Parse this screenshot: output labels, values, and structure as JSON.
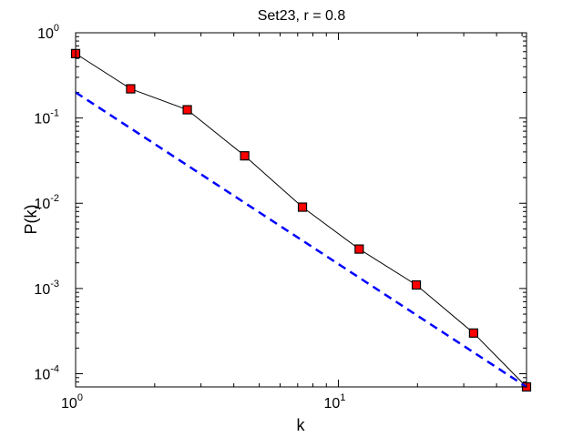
{
  "chart_data": {
    "type": "line",
    "title": "Set23, r = 0.8",
    "xlabel": "k",
    "ylabel": "P(k)",
    "xscale": "log",
    "yscale": "log",
    "xlim": [
      1,
      52
    ],
    "ylim": [
      7e-05,
      1
    ],
    "grid": false,
    "legend": "none",
    "x_ticks": [
      {
        "value": 1,
        "base": "10",
        "exp": "0"
      },
      {
        "value": 10,
        "base": "10",
        "exp": "1"
      }
    ],
    "y_ticks": [
      {
        "value": 1,
        "base": "10",
        "exp": "0"
      },
      {
        "value": 0.1,
        "base": "10",
        "exp": "-1"
      },
      {
        "value": 0.01,
        "base": "10",
        "exp": "-2"
      },
      {
        "value": 0.001,
        "base": "10",
        "exp": "-3"
      },
      {
        "value": 0.0001,
        "base": "10",
        "exp": "-4"
      }
    ],
    "series": [
      {
        "style": "solid-with-square-markers",
        "color": "#000000",
        "marker_color": "#ff0000",
        "x": [
          1,
          1.62,
          2.66,
          4.4,
          7.3,
          12,
          19.8,
          32.7,
          52
        ],
        "y": [
          0.57,
          0.22,
          0.125,
          0.036,
          0.009,
          0.0029,
          0.0011,
          0.0003,
          7e-05
        ]
      },
      {
        "style": "dashed",
        "color": "#0000ff",
        "x": [
          1,
          52
        ],
        "y": [
          0.2,
          7e-05
        ]
      }
    ]
  }
}
